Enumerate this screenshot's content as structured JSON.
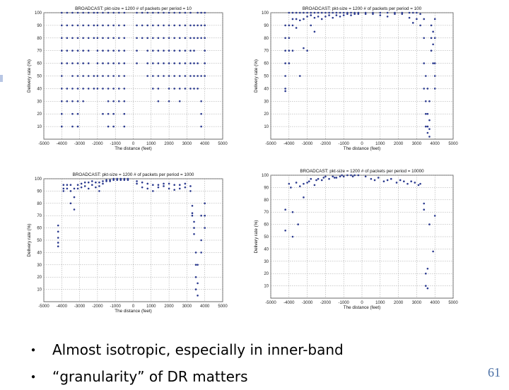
{
  "slide": {
    "bullets": [
      "Almost isotropic, especially in inner-band",
      "“granularity” of DR matters"
    ],
    "page_number": "61",
    "marker_color": "#2b3a8f"
  },
  "chart_data": [
    {
      "type": "scatter",
      "title": "BROADCAST: pkt-size = 1200  # of packets per period = 10",
      "xlabel": "The distance (feet)",
      "ylabel": "Delivery rate (%)",
      "xlim": [
        -5000,
        5000
      ],
      "ylim": [
        0,
        100
      ],
      "xticks": [
        -5000,
        -4000,
        -3000,
        -2000,
        -1000,
        0,
        1000,
        2000,
        3000,
        4000,
        5000
      ],
      "yticks": [
        10,
        20,
        30,
        40,
        50,
        60,
        70,
        80,
        90,
        100
      ],
      "grid": true,
      "x": [
        -4000,
        -4000,
        -4000,
        -4000,
        -4000,
        -4000,
        -4000,
        -4000,
        -4000,
        -4000,
        -3700,
        -3700,
        -3700,
        -3700,
        -3700,
        -3700,
        -3700,
        -3400,
        -3400,
        -3400,
        -3400,
        -3400,
        -3400,
        -3400,
        -3400,
        -3400,
        -3400,
        -3100,
        -3100,
        -3100,
        -3100,
        -3100,
        -3100,
        -3100,
        -3100,
        -3100,
        -3100,
        -2800,
        -2800,
        -2800,
        -2800,
        -2800,
        -2800,
        -2800,
        -2800,
        -2500,
        -2500,
        -2500,
        -2500,
        -2500,
        -2500,
        -2500,
        -2200,
        -2200,
        -2200,
        -2200,
        -2200,
        -2000,
        -2000,
        -2000,
        -2000,
        -2000,
        -2000,
        -2000,
        -1700,
        -1700,
        -1700,
        -1700,
        -1700,
        -1700,
        -1700,
        -1700,
        -1400,
        -1400,
        -1400,
        -1400,
        -1400,
        -1400,
        -1400,
        -1400,
        -1400,
        -1400,
        -1100,
        -1100,
        -1100,
        -1100,
        -1100,
        -1100,
        -1100,
        -1100,
        -1100,
        -1100,
        -800,
        -800,
        -800,
        -800,
        -800,
        -800,
        -800,
        -800,
        -500,
        -500,
        -500,
        -500,
        -500,
        -500,
        -500,
        -500,
        -500,
        -500,
        200,
        200,
        200,
        200,
        200,
        500,
        500,
        500,
        800,
        800,
        800,
        800,
        800,
        800,
        1100,
        1100,
        1100,
        1100,
        1100,
        1100,
        1100,
        1400,
        1400,
        1400,
        1400,
        1400,
        1400,
        1400,
        1400,
        1700,
        1700,
        1700,
        1700,
        1700,
        1700,
        2000,
        2000,
        2000,
        2000,
        2000,
        2000,
        2000,
        2000,
        2300,
        2300,
        2300,
        2300,
        2300,
        2300,
        2300,
        2600,
        2600,
        2600,
        2600,
        2600,
        2600,
        2600,
        2600,
        2900,
        2900,
        2900,
        2900,
        2900,
        2900,
        2900,
        3200,
        3200,
        3200,
        3200,
        3200,
        3200,
        3200,
        3400,
        3400,
        3400,
        3400,
        3400,
        3400,
        3600,
        3600,
        3600,
        3600,
        3600,
        3600,
        3800,
        3800,
        3800,
        3800,
        3800,
        3800,
        3800,
        4000,
        4000,
        4000,
        4000,
        4000,
        4000
      ],
      "y": [
        100,
        90,
        80,
        70,
        60,
        50,
        40,
        30,
        20,
        10,
        100,
        90,
        80,
        70,
        60,
        40,
        30,
        100,
        90,
        80,
        70,
        60,
        50,
        40,
        30,
        20,
        10,
        100,
        90,
        80,
        70,
        60,
        50,
        40,
        30,
        20,
        10,
        100,
        90,
        80,
        70,
        60,
        50,
        40,
        30,
        100,
        90,
        80,
        70,
        60,
        50,
        40,
        100,
        90,
        80,
        50,
        40,
        100,
        90,
        80,
        70,
        60,
        50,
        40,
        100,
        90,
        80,
        70,
        60,
        50,
        40,
        20,
        100,
        90,
        80,
        70,
        60,
        50,
        40,
        30,
        20,
        10,
        100,
        90,
        80,
        70,
        60,
        50,
        40,
        30,
        20,
        10,
        100,
        90,
        80,
        70,
        60,
        50,
        40,
        30,
        100,
        90,
        80,
        70,
        60,
        50,
        40,
        30,
        20,
        10,
        100,
        90,
        80,
        70,
        60,
        100,
        90,
        80,
        100,
        90,
        80,
        70,
        60,
        50,
        100,
        90,
        80,
        70,
        60,
        50,
        40,
        100,
        90,
        80,
        70,
        60,
        50,
        40,
        30,
        100,
        90,
        80,
        70,
        60,
        50,
        100,
        90,
        80,
        70,
        60,
        50,
        40,
        30,
        100,
        90,
        80,
        70,
        60,
        50,
        40,
        100,
        90,
        80,
        70,
        60,
        50,
        40,
        30,
        100,
        90,
        80,
        70,
        60,
        50,
        40,
        100,
        90,
        80,
        70,
        60,
        50,
        40,
        90,
        80,
        70,
        60,
        50,
        40,
        100,
        90,
        80,
        60,
        50,
        40,
        100,
        90,
        80,
        50,
        30,
        20,
        10,
        100,
        90,
        80,
        70,
        60,
        50
      ]
    },
    {
      "type": "scatter",
      "title": "BROADCAST: pkt-size = 1200  # of packets per period = 100",
      "xlabel": "The distance (feet)",
      "ylabel": "Delivery rate (%)",
      "xlim": [
        -5000,
        5000
      ],
      "ylim": [
        0,
        100
      ],
      "xticks": [
        -5000,
        -4000,
        -3000,
        -2000,
        -1000,
        0,
        1000,
        2000,
        3000,
        4000,
        5000
      ],
      "yticks": [
        10,
        20,
        30,
        40,
        50,
        60,
        70,
        80,
        90,
        100
      ],
      "grid": true,
      "x": [
        -4200,
        -4200,
        -4200,
        -4200,
        -4200,
        -4200,
        -4200,
        -4000,
        -4000,
        -4000,
        -4000,
        -4000,
        -3800,
        -3800,
        -3800,
        -3800,
        -3600,
        -3600,
        -3600,
        -3400,
        -3400,
        -3400,
        -3200,
        -3200,
        -3200,
        -3000,
        -3000,
        -3000,
        -2800,
        -2800,
        -2800,
        -2600,
        -2600,
        -2600,
        -2400,
        -2400,
        -2200,
        -2200,
        -2000,
        -2000,
        -1800,
        -1800,
        -1600,
        -1600,
        -1400,
        -1400,
        -1200,
        -1200,
        -1000,
        -1000,
        -800,
        -800,
        -600,
        -600,
        -400,
        -400,
        -200,
        -200,
        200,
        200,
        600,
        600,
        1000,
        1000,
        1400,
        1400,
        1800,
        1800,
        2200,
        2200,
        2600,
        2600,
        2800,
        2800,
        3000,
        3000,
        3200,
        3200,
        3400,
        3400,
        3400,
        3400,
        3500,
        3500,
        3500,
        3500,
        3600,
        3600,
        3600,
        3600,
        3700,
        3700,
        3700,
        3700,
        3800,
        3800,
        3800,
        3900,
        3900,
        3900,
        4000,
        4000,
        4000,
        4000,
        4000
      ],
      "y": [
        90,
        80,
        70,
        60,
        50,
        40,
        38,
        100,
        90,
        80,
        70,
        60,
        100,
        95,
        90,
        70,
        100,
        95,
        88,
        100,
        94,
        50,
        100,
        95,
        72,
        100,
        97,
        70,
        100,
        98,
        90,
        100,
        96,
        85,
        100,
        97,
        100,
        95,
        100,
        97,
        100,
        98,
        100,
        96,
        100,
        98,
        100,
        97,
        100,
        98,
        100,
        99,
        100,
        98,
        100,
        99,
        100,
        99,
        100,
        99,
        100,
        99,
        100,
        98,
        100,
        97,
        100,
        99,
        100,
        99,
        100,
        96,
        100,
        92,
        100,
        95,
        99,
        90,
        95,
        80,
        60,
        40,
        50,
        30,
        20,
        10,
        40,
        20,
        10,
        5,
        30,
        15,
        8,
        2,
        90,
        80,
        70,
        85,
        75,
        60,
        95,
        80,
        60,
        50,
        40
      ]
    },
    {
      "type": "scatter",
      "title": "BROADCAST: pkt-size = 1200  # of packets per period = 1000",
      "xlabel": "The distance (feet)",
      "ylabel": "Delivery rate (%)",
      "xlim": [
        -5000,
        5000
      ],
      "ylim": [
        0,
        100
      ],
      "xticks": [
        -5000,
        -4000,
        -3000,
        -2000,
        -1000,
        0,
        1000,
        2000,
        3000,
        4000,
        5000
      ],
      "yticks": [
        10,
        20,
        30,
        40,
        50,
        60,
        70,
        80,
        90,
        100
      ],
      "grid": true,
      "x": [
        -4200,
        -4200,
        -4200,
        -4200,
        -4200,
        -3900,
        -3900,
        -3900,
        -3700,
        -3700,
        -3500,
        -3500,
        -3500,
        -3300,
        -3300,
        -3300,
        -3100,
        -3100,
        -2900,
        -2900,
        -2700,
        -2700,
        -2500,
        -2500,
        -2300,
        -2300,
        -2100,
        -2100,
        -1900,
        -1900,
        -1900,
        -1700,
        -1700,
        -1500,
        -1500,
        -1300,
        -1300,
        -1100,
        -1100,
        -900,
        -900,
        -700,
        -700,
        -500,
        -500,
        -300,
        -300,
        200,
        200,
        500,
        500,
        800,
        800,
        1100,
        1100,
        1400,
        1400,
        1700,
        1700,
        2000,
        2000,
        2300,
        2300,
        2600,
        2600,
        2900,
        2900,
        3200,
        3200,
        3300,
        3300,
        3300,
        3400,
        3400,
        3400,
        3500,
        3500,
        3500,
        3500,
        3600,
        3600,
        3600,
        3800,
        3800,
        3800,
        4000,
        4000,
        4000
      ],
      "y": [
        62,
        57,
        52,
        48,
        45,
        95,
        92,
        90,
        95,
        92,
        95,
        90,
        80,
        92,
        85,
        75,
        95,
        92,
        96,
        93,
        97,
        94,
        97,
        92,
        98,
        95,
        97,
        93,
        97,
        94,
        90,
        98,
        96,
        99,
        98,
        99,
        98,
        100,
        99,
        100,
        99,
        100,
        99,
        100,
        99,
        100,
        99,
        98,
        96,
        97,
        93,
        96,
        92,
        95,
        90,
        95,
        93,
        96,
        94,
        96,
        92,
        95,
        91,
        95,
        92,
        96,
        93,
        94,
        90,
        78,
        72,
        70,
        65,
        60,
        55,
        40,
        30,
        20,
        10,
        30,
        15,
        5,
        70,
        50,
        40,
        80,
        70,
        60
      ]
    },
    {
      "type": "scatter",
      "title": "BROADCAST: pkt-size = 1200  # of packets per period = 10000",
      "xlabel": "The distance (feet)",
      "ylabel": "Delivery rate (%)",
      "xlim": [
        -5000,
        5000
      ],
      "ylim": [
        0,
        100
      ],
      "xticks": [
        -5000,
        -4000,
        -3000,
        -2000,
        -1000,
        0,
        1000,
        2000,
        3000,
        4000,
        5000
      ],
      "yticks": [
        10,
        20,
        30,
        40,
        50,
        60,
        70,
        80,
        90,
        100
      ],
      "grid": true,
      "x": [
        -4200,
        -4200,
        -4000,
        -3900,
        -3800,
        -3800,
        -3600,
        -3500,
        -3400,
        -3200,
        -3200,
        -3000,
        -2900,
        -2800,
        -2600,
        -2500,
        -2400,
        -2200,
        -2100,
        -2000,
        -1800,
        -1600,
        -1500,
        -1400,
        -1200,
        -1100,
        -1000,
        -800,
        -600,
        -500,
        -400,
        -200,
        200,
        500,
        700,
        900,
        1200,
        1400,
        1600,
        1900,
        2100,
        2300,
        2500,
        2700,
        2900,
        3100,
        3200,
        3400,
        3400,
        3500,
        3500,
        3600,
        3600,
        3700,
        3900,
        4000
      ],
      "y": [
        72,
        55,
        93,
        90,
        50,
        70,
        94,
        60,
        91,
        93,
        82,
        94,
        95,
        97,
        92,
        96,
        97,
        96,
        98,
        99,
        97,
        99,
        98,
        98,
        99,
        100,
        99,
        100,
        100,
        99,
        100,
        100,
        99,
        97,
        96,
        98,
        95,
        96,
        97,
        94,
        96,
        95,
        93,
        95,
        94,
        92,
        93,
        77,
        72,
        10,
        20,
        8,
        24,
        60,
        38,
        67
      ]
    }
  ]
}
